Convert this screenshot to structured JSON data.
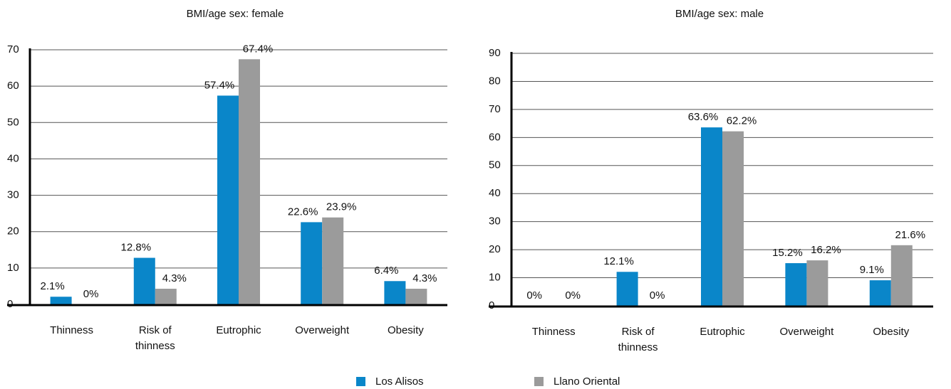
{
  "chart_data": [
    {
      "type": "bar",
      "title": "BMI/age sex: female",
      "categories": [
        "Thinness",
        "Risk of thinness",
        "Eutrophic",
        "Overweight",
        "Obesity"
      ],
      "series": [
        {
          "name": "Los Alisos",
          "color": "#0a86c9",
          "values": [
            2.1,
            12.8,
            57.4,
            22.6,
            6.4
          ],
          "value_labels": [
            "2.1%",
            "12.8%",
            "57.4%",
            "22.6%",
            "6.4%"
          ]
        },
        {
          "name": "Llano Oriental",
          "color": "#9b9b9b",
          "values": [
            0,
            4.3,
            67.4,
            23.9,
            4.3
          ],
          "value_labels": [
            "0%",
            "4.3%",
            "67.4%",
            "23.9%",
            "4.3%"
          ]
        }
      ],
      "ylim": [
        0,
        70
      ],
      "yticks": [
        0,
        10,
        20,
        30,
        40,
        50,
        60,
        70
      ],
      "grid": true
    },
    {
      "type": "bar",
      "title": "BMI/age sex: male",
      "categories": [
        "Thinness",
        "Risk of thinness",
        "Eutrophic",
        "Overweight",
        "Obesity"
      ],
      "series": [
        {
          "name": "Los Alisos",
          "color": "#0a86c9",
          "values": [
            0,
            12.1,
            63.6,
            15.2,
            9.1
          ],
          "value_labels": [
            "0%",
            "12.1%",
            "63.6%",
            "15.2%",
            "9.1%"
          ]
        },
        {
          "name": "Llano Oriental",
          "color": "#9b9b9b",
          "values": [
            0,
            0,
            62.2,
            16.2,
            21.6
          ],
          "value_labels": [
            "0%",
            "0%",
            "62.2%",
            "16.2%",
            "21.6%"
          ]
        }
      ],
      "ylim": [
        0,
        90
      ],
      "yticks": [
        0,
        10,
        20,
        30,
        40,
        50,
        60,
        70,
        80,
        90
      ],
      "grid": true
    }
  ]
}
